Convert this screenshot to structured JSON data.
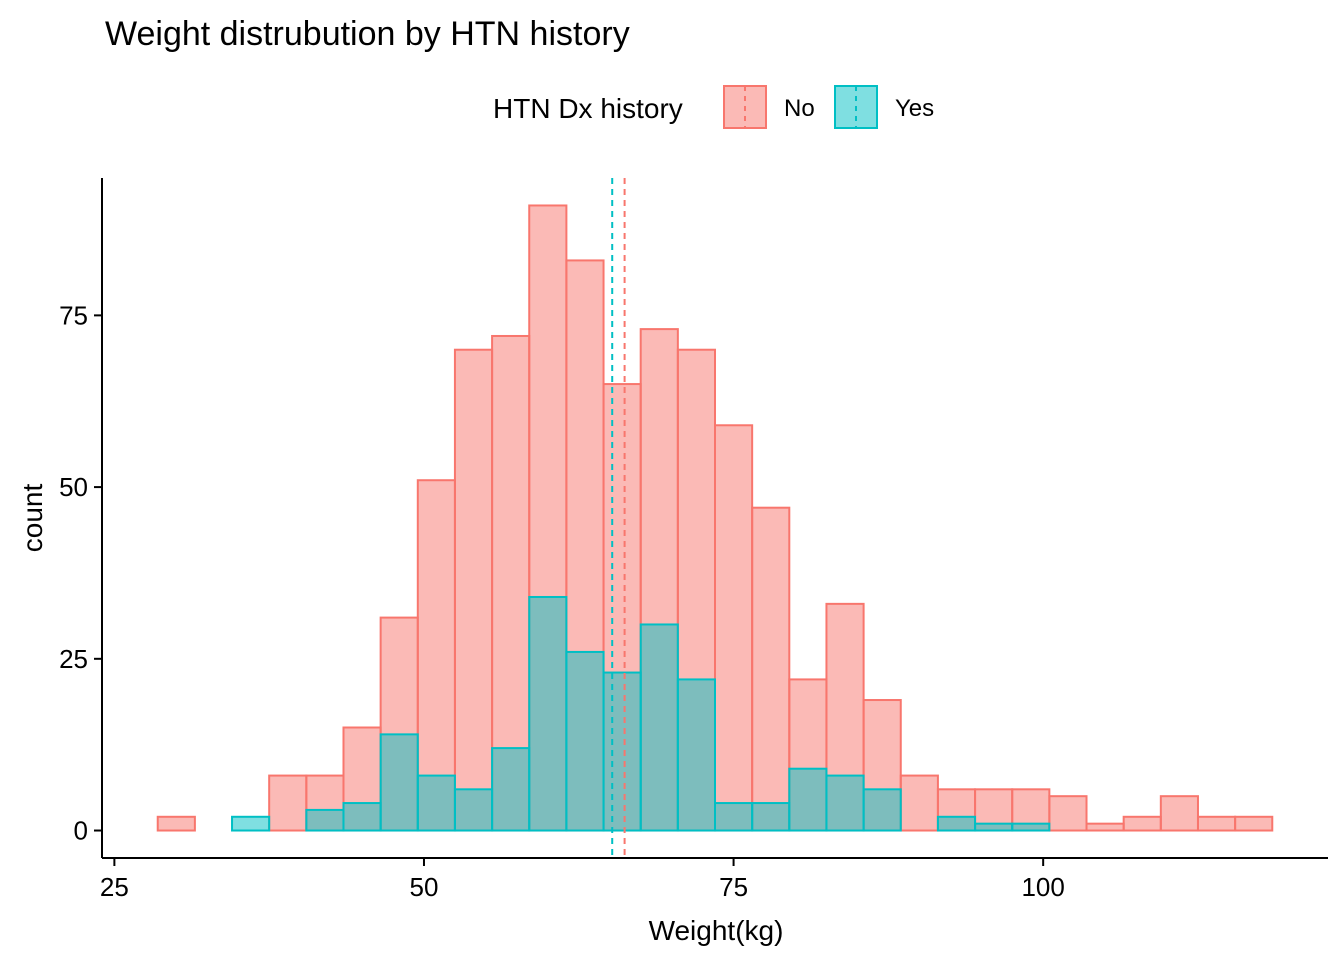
{
  "colors": {
    "no_fill": "#F8766D",
    "no_stroke": "#F8766D",
    "yes_fill": "#00BFC4",
    "yes_stroke": "#00BFC4",
    "axis": "#000000",
    "background": "#FFFFFF"
  },
  "chart_data": {
    "type": "histogram",
    "title": "Weight distrubution by HTN history",
    "xlabel": "Weight(kg)",
    "ylabel": "count",
    "xlim": [
      24,
      123
    ],
    "ylim": [
      -4,
      95
    ],
    "x_ticks": [
      25,
      50,
      75,
      100
    ],
    "y_ticks": [
      0,
      25,
      50,
      75
    ],
    "grid": false,
    "legend": {
      "title": "HTN Dx history",
      "position": "top",
      "entries": [
        "No",
        "Yes"
      ]
    },
    "bins": {
      "start": 28.5,
      "width": 3.0,
      "count": 30
    },
    "series": [
      {
        "name": "No",
        "fill_opacity": 0.5,
        "values": [
          2,
          0,
          0,
          8,
          8,
          15,
          31,
          51,
          70,
          72,
          91,
          83,
          65,
          73,
          70,
          59,
          47,
          22,
          33,
          19,
          8,
          6,
          6,
          6,
          5,
          1,
          2,
          5,
          2,
          2
        ],
        "mean": 66.2
      },
      {
        "name": "Yes",
        "fill_opacity": 0.5,
        "values": [
          0,
          0,
          2,
          0,
          3,
          4,
          14,
          8,
          6,
          12,
          34,
          26,
          23,
          30,
          22,
          4,
          4,
          9,
          8,
          6,
          0,
          2,
          1,
          1,
          0,
          0,
          0,
          0,
          0,
          0
        ],
        "mean": 65.2
      }
    ]
  }
}
